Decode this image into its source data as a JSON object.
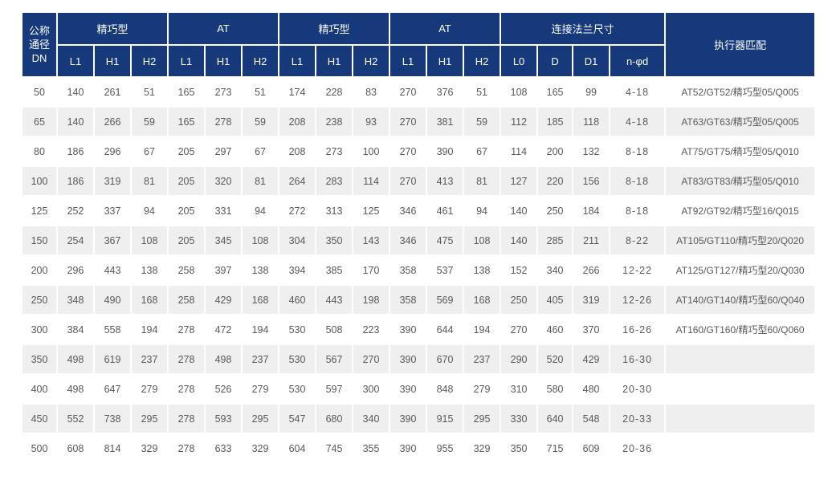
{
  "colors": {
    "header_bg": "#16397b",
    "header_text": "#ffffff",
    "row_alt_bg": "#efefef",
    "body_text": "#595959",
    "bottom_rule": "#4d6fae",
    "page_bg": "#ffffff"
  },
  "table": {
    "header": {
      "dn": [
        "公称",
        "通径",
        "DN"
      ],
      "groups": [
        {
          "label": "精巧型",
          "cols": [
            "L1",
            "H1",
            "H2"
          ]
        },
        {
          "label": "AT",
          "cols": [
            "L1",
            "H1",
            "H2"
          ]
        },
        {
          "label": "精巧型",
          "cols": [
            "L1",
            "H1",
            "H2"
          ]
        },
        {
          "label": "AT",
          "cols": [
            "L1",
            "H1",
            "H2"
          ]
        },
        {
          "label": "连接法兰尺寸",
          "cols": [
            "L0",
            "D",
            "D1",
            "n-φd"
          ]
        }
      ],
      "actuator_label": "执行器匹配"
    },
    "rows": [
      [
        "50",
        "140",
        "261",
        "51",
        "165",
        "273",
        "51",
        "174",
        "228",
        "83",
        "270",
        "376",
        "51",
        "108",
        "165",
        "99",
        "4-18",
        "AT52/GT52/精巧型05/Q005"
      ],
      [
        "65",
        "140",
        "266",
        "59",
        "165",
        "278",
        "59",
        "208",
        "238",
        "93",
        "270",
        "381",
        "59",
        "112",
        "185",
        "118",
        "4-18",
        "AT63/GT63/精巧型05/Q005"
      ],
      [
        "80",
        "186",
        "296",
        "67",
        "205",
        "297",
        "67",
        "208",
        "273",
        "100",
        "270",
        "390",
        "67",
        "114",
        "200",
        "132",
        "8-18",
        "AT75/GT75/精巧型05/Q010"
      ],
      [
        "100",
        "186",
        "319",
        "81",
        "205",
        "320",
        "81",
        "264",
        "283",
        "114",
        "270",
        "413",
        "81",
        "127",
        "220",
        "156",
        "8-18",
        "AT83/GT83/精巧型05/Q010"
      ],
      [
        "125",
        "252",
        "337",
        "94",
        "205",
        "331",
        "94",
        "272",
        "313",
        "125",
        "346",
        "461",
        "94",
        "140",
        "250",
        "184",
        "8-18",
        "AT92/GT92/精巧型16/Q015"
      ],
      [
        "150",
        "254",
        "367",
        "108",
        "205",
        "345",
        "108",
        "304",
        "350",
        "143",
        "346",
        "475",
        "108",
        "140",
        "285",
        "211",
        "8-22",
        "AT105/GT110/精巧型20/Q020"
      ],
      [
        "200",
        "296",
        "443",
        "138",
        "258",
        "397",
        "138",
        "394",
        "385",
        "170",
        "358",
        "537",
        "138",
        "152",
        "340",
        "266",
        "12-22",
        "AT125/GT127/精巧型20/Q030"
      ],
      [
        "250",
        "348",
        "490",
        "168",
        "258",
        "429",
        "168",
        "460",
        "443",
        "198",
        "358",
        "569",
        "168",
        "250",
        "405",
        "319",
        "12-26",
        "AT140/GT140/精巧型60/Q040"
      ],
      [
        "300",
        "384",
        "558",
        "194",
        "278",
        "472",
        "194",
        "530",
        "508",
        "223",
        "390",
        "644",
        "194",
        "270",
        "460",
        "370",
        "16-26",
        "AT160/GT160/精巧型60/Q060"
      ],
      [
        "350",
        "498",
        "619",
        "237",
        "278",
        "498",
        "237",
        "530",
        "567",
        "270",
        "390",
        "670",
        "237",
        "290",
        "520",
        "429",
        "16-30",
        ""
      ],
      [
        "400",
        "498",
        "647",
        "279",
        "278",
        "526",
        "279",
        "530",
        "597",
        "300",
        "390",
        "848",
        "279",
        "310",
        "580",
        "480",
        "20-30",
        ""
      ],
      [
        "450",
        "552",
        "738",
        "295",
        "278",
        "593",
        "295",
        "547",
        "680",
        "340",
        "390",
        "915",
        "295",
        "330",
        "640",
        "548",
        "20-33",
        ""
      ],
      [
        "500",
        "608",
        "814",
        "329",
        "278",
        "633",
        "329",
        "604",
        "745",
        "355",
        "390",
        "955",
        "329",
        "350",
        "715",
        "609",
        "20-36",
        ""
      ]
    ]
  }
}
